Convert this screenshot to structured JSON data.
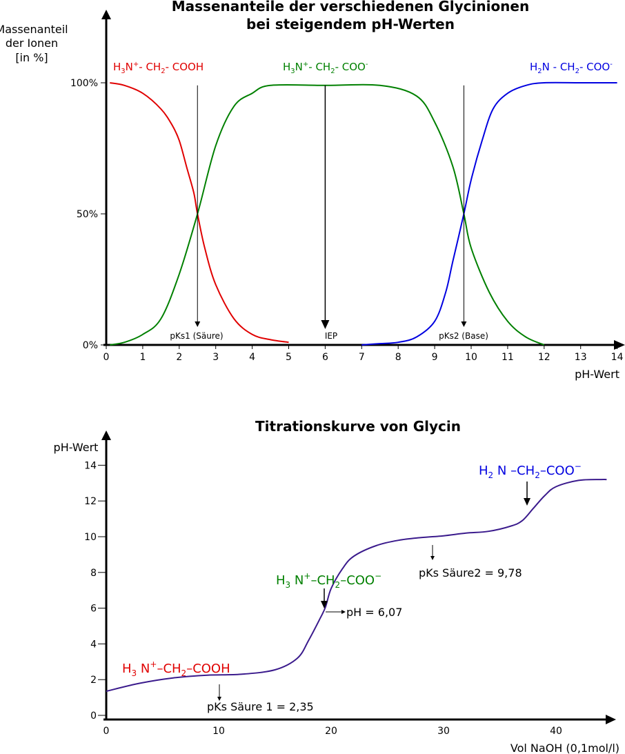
{
  "chart_data": [
    {
      "type": "line",
      "title_line1": "Massenanteile der verschiedenen Glycinionen",
      "title_line2": "bei steigendem pH-Werten",
      "ylabel_line1": "Massenanteil",
      "ylabel_line2": "der Ionen",
      "ylabel_line3": "[in %]",
      "xlabel": "pH-Wert",
      "xlim": [
        0,
        14
      ],
      "ylim": [
        0,
        100
      ],
      "x_ticks": [
        "0",
        "1",
        "2",
        "3",
        "4",
        "5",
        "6",
        "7",
        "8",
        "9",
        "10",
        "11",
        "12",
        "13",
        "14"
      ],
      "y_ticks": [
        "0%",
        "50%",
        "100%"
      ],
      "series": [
        {
          "name": "H3N+ - CH2 - COOH",
          "color": "#e00000",
          "x": [
            0.1,
            0.5,
            1.0,
            1.5,
            1.8,
            2.0,
            2.2,
            2.4,
            2.5,
            2.7,
            3.0,
            3.5,
            4.0,
            4.5,
            5.0
          ],
          "y": [
            100,
            99,
            96,
            90,
            84,
            78,
            68,
            58,
            50,
            37,
            23,
            10,
            4,
            2,
            1
          ]
        },
        {
          "name": "H3N+ - CH2 - COO-",
          "color": "#008000",
          "x": [
            0.1,
            0.5,
            1.0,
            1.5,
            2.0,
            2.5,
            3.0,
            3.5,
            4.0,
            4.5,
            6.0,
            7.5,
            8.5,
            9.0,
            9.5,
            9.8,
            10.0,
            10.5,
            11.0,
            11.5,
            12.0
          ],
          "y": [
            0,
            1,
            4,
            10,
            27,
            50,
            76,
            91,
            96,
            99,
            99,
            99,
            95,
            85,
            68,
            50,
            37,
            20,
            9,
            3,
            0
          ]
        },
        {
          "name": "H2N - CH2 - COO-",
          "color": "#0000e0",
          "x": [
            7.0,
            7.5,
            8.0,
            8.5,
            9.0,
            9.3,
            9.5,
            9.8,
            10.0,
            10.3,
            10.6,
            11.0,
            11.5,
            12.0,
            13.0,
            14.0
          ],
          "y": [
            0,
            0.5,
            1,
            3,
            9,
            20,
            32,
            50,
            63,
            78,
            90,
            96,
            99,
            100,
            100,
            100
          ]
        }
      ],
      "annotations": [
        {
          "text": "pKs1 (Säure)",
          "x": 2.5
        },
        {
          "text": "IEP",
          "x": 6.0
        },
        {
          "text": "pKs2 (Base)",
          "x": 9.8
        }
      ]
    },
    {
      "type": "line",
      "title": "Titrationskurve von Glycin",
      "ylabel": "pH-Wert",
      "xlabel": "Vol NaOH (0,1mol/l)",
      "xlim": [
        0,
        45
      ],
      "ylim": [
        0,
        14
      ],
      "x_ticks": [
        "0",
        "10",
        "20",
        "30",
        "40"
      ],
      "y_ticks": [
        "0",
        "2",
        "4",
        "6",
        "8",
        "10",
        "12",
        "14"
      ],
      "series": [
        {
          "name": "",
          "color": "#3a1a8c",
          "x": [
            0,
            3,
            6,
            9,
            12,
            15,
            17,
            18,
            19,
            19.5,
            20,
            21,
            22,
            24,
            26,
            28,
            30,
            32,
            34,
            36,
            37,
            38,
            39,
            40,
            42,
            44,
            44.5
          ],
          "y": [
            1.35,
            1.8,
            2.1,
            2.25,
            2.3,
            2.55,
            3.2,
            4.2,
            5.4,
            6.07,
            7.1,
            8.2,
            8.9,
            9.5,
            9.8,
            9.95,
            10.05,
            10.2,
            10.3,
            10.6,
            10.9,
            11.6,
            12.3,
            12.8,
            13.15,
            13.2,
            13.2
          ]
        }
      ],
      "annotations": [
        {
          "text": "pKs Säure 1 = 2,35",
          "x": 10,
          "y": 2.35
        },
        {
          "text": "pH = 6,07",
          "x": 19.5,
          "y": 6.07
        },
        {
          "text": "pKs Säure2 = 9,78",
          "x": 29,
          "y": 9.78
        }
      ]
    }
  ],
  "labels": {
    "species1_top": {
      "a": "H",
      "b": "3",
      "c": "N",
      "d": "+",
      "e": "- CH",
      "f": "2",
      "g": "- COOH"
    },
    "species2_top": {
      "a": "H",
      "b": "3",
      "c": "N",
      "d": "+",
      "e": "- CH",
      "f": "2",
      "g": "- COO",
      "h": "-"
    },
    "species3_top": {
      "a": "H",
      "b": "2",
      "c": "N - CH",
      "d": "2",
      "e": "- COO",
      "f": "-"
    },
    "species1_bot": {
      "a": "H",
      "b": "3",
      "c": " N",
      "d": "+",
      "e": "–CH",
      "f": "2",
      "g": "–COOH"
    },
    "species2_bot": {
      "a": "H",
      "b": "3",
      "c": " N",
      "d": "+",
      "e": "–CH",
      "f": "2",
      "g": "–COO",
      "h": "−"
    },
    "species3_bot": {
      "a": "H",
      "b": "2",
      "c": " N –CH",
      "d": "2",
      "e": "–COO",
      "f": "−"
    }
  },
  "colors": {
    "red": "#e00000",
    "green": "#008000",
    "blue": "#0000e0",
    "purple": "#3a1a8c"
  }
}
